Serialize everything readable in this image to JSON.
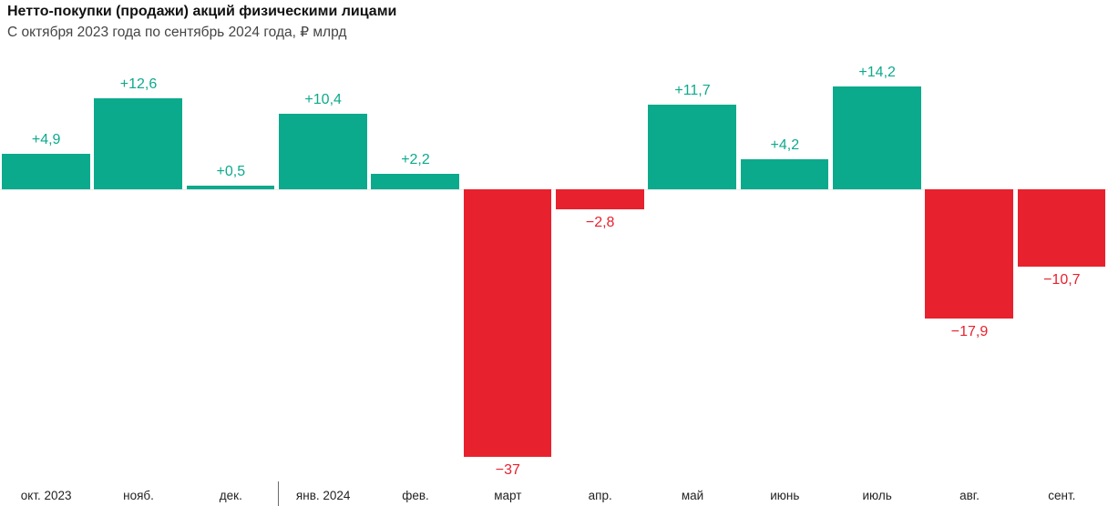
{
  "header": {
    "title": "Нетто-покупки (продажи) акций физическими лицами",
    "subtitle": "С октября 2023 года по сентябрь 2024 года, ₽ млрд"
  },
  "chart_data": {
    "type": "bar",
    "title": "Нетто-покупки (продажи) акций физическими лицами",
    "subtitle": "С октября 2023 года по сентябрь 2024 года, ₽ млрд",
    "xlabel": "",
    "ylabel": "₽ млрд",
    "ylim": [
      -37,
      14.2
    ],
    "grid": false,
    "legend": "none",
    "categories": [
      "окт. 2023",
      "нояб.",
      "дек.",
      "янв. 2024",
      "фев.",
      "март",
      "апр.",
      "май",
      "июнь",
      "июль",
      "авг.",
      "сент."
    ],
    "values": [
      4.9,
      12.6,
      0.5,
      10.4,
      2.2,
      -37,
      -2.8,
      11.7,
      4.2,
      14.2,
      -17.9,
      -10.7
    ],
    "value_labels": [
      "+4,9",
      "+12,6",
      "+0,5",
      "+10,4",
      "+2,2",
      "−37",
      "−2,8",
      "+11,7",
      "+4,2",
      "+14,2",
      "−17,9",
      "−10,7"
    ],
    "colors": {
      "positive": "#0caa8d",
      "negative": "#e8212e"
    },
    "year_separator_index": 3
  }
}
